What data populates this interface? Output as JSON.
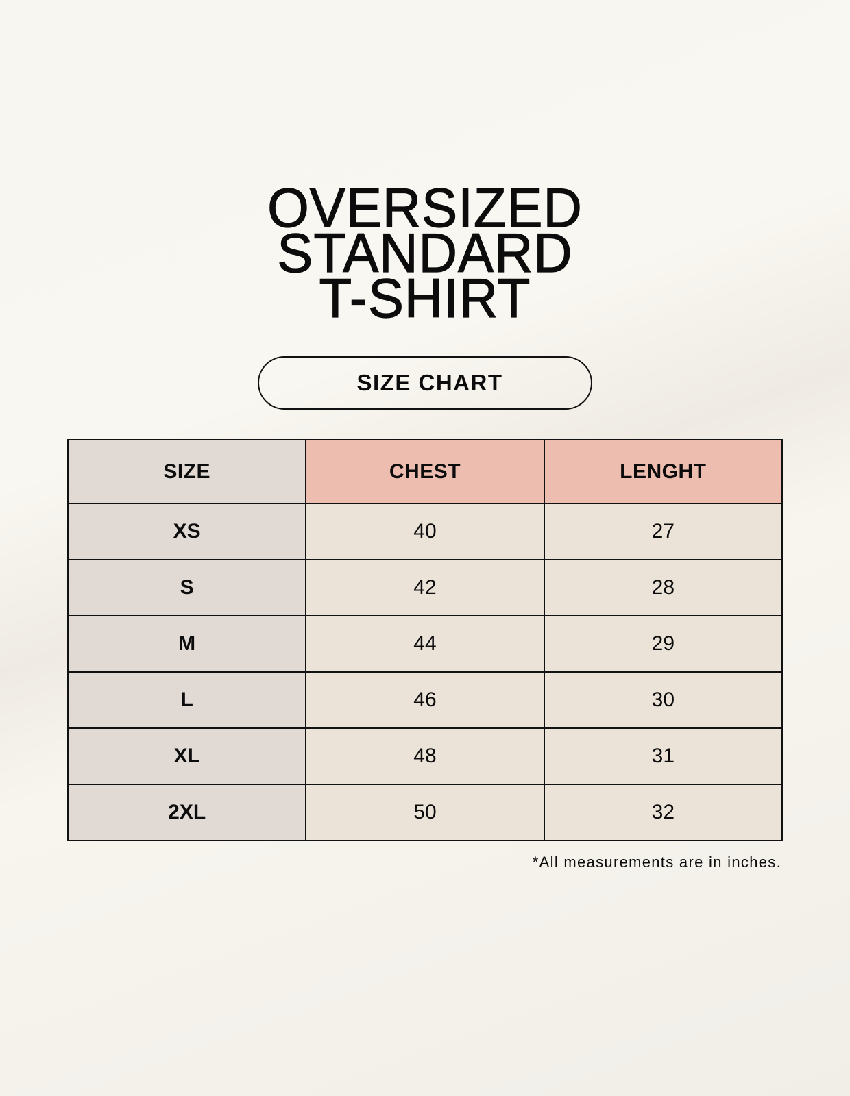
{
  "title": {
    "line1": "OVERSIZED",
    "line2": "STANDARD",
    "line3": "T-SHIRT"
  },
  "badge": "SIZE CHART",
  "table": {
    "headers": [
      "SIZE",
      "CHEST",
      "LENGHT"
    ],
    "rows": [
      [
        "XS",
        "40",
        "27"
      ],
      [
        "S",
        "42",
        "28"
      ],
      [
        "M",
        "44",
        "29"
      ],
      [
        "L",
        "46",
        "30"
      ],
      [
        "XL",
        "48",
        "31"
      ],
      [
        "2XL",
        "50",
        "32"
      ]
    ]
  },
  "footnote": "*All measurements are in inches.",
  "colors": {
    "header_accent": "#edbdb0",
    "size_column": "#e1d9d4",
    "value_cells": "#ebe3d8"
  }
}
